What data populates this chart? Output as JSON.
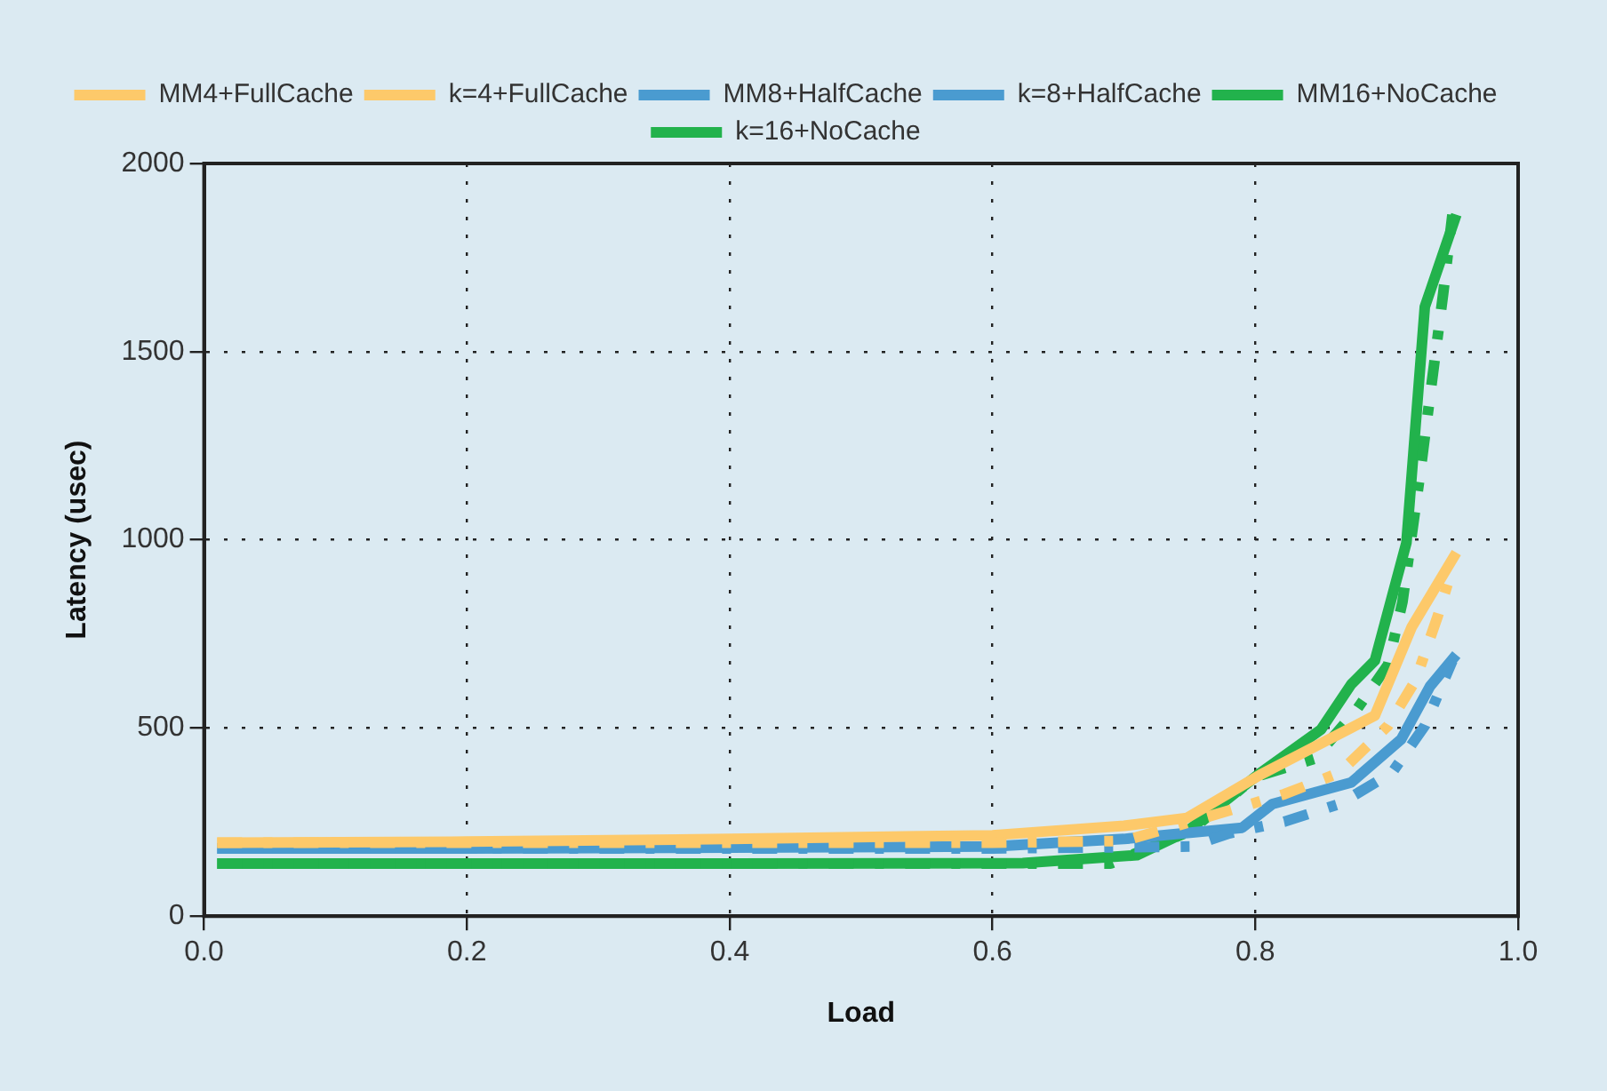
{
  "chart_data": {
    "type": "line",
    "xlabel": "Load",
    "ylabel": "Latency (usec)",
    "xlim": [
      0,
      1
    ],
    "xticks": [
      {
        "value": 0,
        "label": "0.0"
      },
      0.2,
      0.4,
      0.6,
      0.8,
      {
        "value": 1,
        "label": "1.0"
      }
    ],
    "ylim": [
      0,
      2000
    ],
    "yticks": [
      0,
      500,
      1000,
      1500,
      2000
    ],
    "grid": true,
    "legend": "top",
    "marker": "none",
    "series": [
      {
        "name": "MM4+FullCache",
        "color": "#fdc96a",
        "line_style": "dashed",
        "x": [
          0.01,
          0.2,
          0.4,
          0.6,
          0.7,
          0.75,
          0.822,
          0.864,
          0.901,
          0.922,
          0.939,
          0.95
        ],
        "values": [
          195,
          195,
          195,
          195,
          200,
          250,
          324,
          381,
          506,
          627,
          799,
          924
        ]
      },
      {
        "name": "k=4+FullCache",
        "color": "#fdc96a",
        "line_style": "solid",
        "x": [
          0.01,
          0.2,
          0.4,
          0.6,
          0.7,
          0.748,
          0.804,
          0.891,
          0.919,
          0.953
        ],
        "values": [
          195,
          198,
          205,
          215,
          240,
          261,
          376,
          533,
          768,
          966
        ]
      },
      {
        "name": "MM8+HalfCache",
        "color": "#4a9bd0",
        "line_style": "dashed",
        "x": [
          0.01,
          0.2,
          0.4,
          0.6,
          0.75,
          0.78,
          0.822,
          0.864,
          0.904,
          0.929,
          0.95
        ],
        "values": [
          180,
          180,
          180,
          180,
          185,
          220,
          251,
          298,
          381,
          506,
          679
        ]
      },
      {
        "name": "k=8+HalfCache",
        "color": "#4a9bd0",
        "line_style": "solid",
        "x": [
          0.01,
          0.2,
          0.4,
          0.6,
          0.7,
          0.79,
          0.813,
          0.873,
          0.911,
          0.933,
          0.953
        ],
        "values": [
          180,
          180,
          182,
          185,
          205,
          235,
          298,
          355,
          470,
          611,
          695
        ]
      },
      {
        "name": "MM16+NoCache",
        "color": "#22b24c",
        "line_style": "dashed",
        "x": [
          0.01,
          0.2,
          0.4,
          0.6,
          0.69,
          0.75,
          0.8,
          0.845,
          0.877,
          0.901,
          0.912,
          0.925,
          0.943,
          0.95
        ],
        "values": [
          140,
          140,
          140,
          140,
          140,
          225,
          370,
          418,
          548,
          668,
          835,
          1164,
          1655,
          1864
        ]
      },
      {
        "name": "k=16+NoCache",
        "color": "#22b24c",
        "line_style": "solid",
        "x": [
          0.01,
          0.2,
          0.4,
          0.623,
          0.71,
          0.748,
          0.804,
          0.85,
          0.873,
          0.891,
          0.915,
          0.929,
          0.953
        ],
        "values": [
          140,
          140,
          140,
          141,
          162,
          225,
          381,
          496,
          616,
          679,
          992,
          1619,
          1864
        ]
      }
    ]
  }
}
